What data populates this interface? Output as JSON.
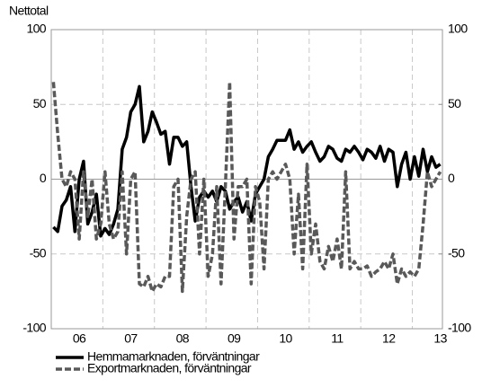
{
  "chart_data": {
    "type": "line",
    "y_label": "Nettotal",
    "categories": [
      null,
      null,
      null,
      null,
      null,
      null,
      "06",
      null,
      null,
      null,
      null,
      null,
      null,
      null,
      null,
      null,
      null,
      null,
      "07",
      null,
      null,
      null,
      null,
      null,
      null,
      null,
      null,
      null,
      null,
      null,
      "08",
      null,
      null,
      null,
      null,
      null,
      null,
      null,
      null,
      null,
      null,
      null,
      "09",
      null,
      null,
      null,
      null,
      null,
      null,
      null,
      null,
      null,
      null,
      null,
      "10",
      null,
      null,
      null,
      null,
      null,
      null,
      null,
      null,
      null,
      null,
      null,
      "11",
      null,
      null,
      null,
      null,
      null,
      null,
      null,
      null,
      null,
      null,
      null,
      "12",
      null,
      null,
      null,
      null,
      null,
      null,
      null,
      null,
      null,
      null,
      null,
      "13"
    ],
    "series": [
      {
        "name": "Hemmamarknaden, förväntningar",
        "color": "#000000",
        "dash": false,
        "values": [
          -32,
          -35,
          -18,
          -14,
          -5,
          -35,
          0,
          12,
          -30,
          -22,
          -10,
          -38,
          -33,
          -37,
          -30,
          -20,
          20,
          28,
          45,
          50,
          62,
          25,
          32,
          45,
          38,
          30,
          32,
          10,
          28,
          28,
          22,
          25,
          -5,
          -28,
          -12,
          -8,
          -12,
          -8,
          -15,
          -5,
          -8,
          -20,
          -15,
          -12,
          -22,
          -15,
          -28,
          -10,
          -5,
          0,
          15,
          20,
          26,
          26,
          26,
          33,
          20,
          25,
          18,
          22,
          25,
          18,
          12,
          15,
          22,
          20,
          14,
          12,
          20,
          18,
          22,
          18,
          13,
          20,
          18,
          14,
          22,
          12,
          20,
          18,
          -5,
          10,
          18,
          0,
          15,
          2,
          20,
          5,
          15,
          8,
          10
        ]
      },
      {
        "name": "Exportmarknaden, förväntningar",
        "color": "#595959",
        "dash": true,
        "values": [
          65,
          30,
          0,
          -5,
          5,
          0,
          -40,
          5,
          -25,
          0,
          -40,
          -30,
          5,
          -30,
          -40,
          -35,
          5,
          -50,
          0,
          5,
          -70,
          -72,
          -65,
          -75,
          -70,
          -72,
          -65,
          -65,
          -5,
          0,
          -75,
          -25,
          0,
          5,
          -50,
          0,
          -65,
          -50,
          -5,
          -70,
          -5,
          65,
          -40,
          -5,
          -5,
          0,
          -70,
          -5,
          -15,
          -60,
          0,
          5,
          0,
          5,
          10,
          0,
          -50,
          -10,
          -60,
          10,
          -50,
          -30,
          -55,
          -60,
          -45,
          -55,
          -40,
          -60,
          5,
          -60,
          -55,
          -60,
          -60,
          -58,
          -65,
          -62,
          -60,
          -55,
          -60,
          -50,
          -70,
          -60,
          -65,
          -62,
          -65,
          -60,
          -30,
          5,
          -5,
          0,
          5
        ]
      }
    ],
    "ylim": [
      -100,
      100
    ],
    "yticks": [
      -100,
      -50,
      0,
      50,
      100
    ],
    "y2lim": [
      -100,
      100
    ],
    "y2ticks": [
      -100,
      -50,
      0,
      50,
      100
    ],
    "grid": true,
    "legend": "bottom"
  }
}
